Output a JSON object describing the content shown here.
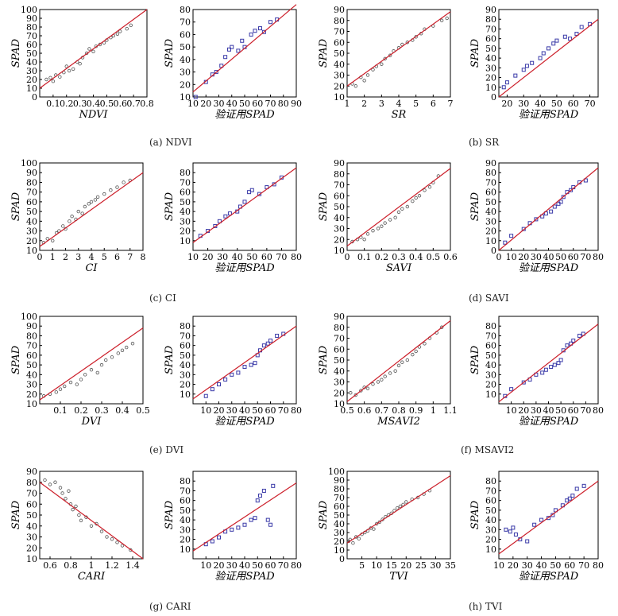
{
  "colors": {
    "fit_line": "#cc1f2a",
    "train_marker": "#555555",
    "validation_marker": "#3a3aa8",
    "axis": "#000000"
  },
  "captions": [
    {
      "id": "a",
      "text": "(a) NDVI"
    },
    {
      "id": "b",
      "text": "(b) SR"
    },
    {
      "id": "c",
      "text": "(c) CI"
    },
    {
      "id": "d",
      "text": "(d) SAVI"
    },
    {
      "id": "e",
      "text": "(e) DVI"
    },
    {
      "id": "f",
      "text": "(f) MSAVI2"
    },
    {
      "id": "g",
      "text": "(g) CARI"
    },
    {
      "id": "h",
      "text": "(h) TVI"
    }
  ],
  "chart_data": [
    {
      "id": "ndvi-model",
      "type": "scatter",
      "marker": "circle",
      "xlabel": "NDVI",
      "ylabel": "SPAD",
      "xlim": [
        0,
        0.8
      ],
      "ylim": [
        0,
        100
      ],
      "xticks": [
        0.1,
        0.2,
        0.3,
        0.4,
        0.5,
        0.6,
        0.7,
        0.8
      ],
      "yticks": [
        0,
        10,
        20,
        30,
        40,
        50,
        60,
        70,
        80,
        90,
        100
      ],
      "fit": [
        [
          0,
          10
        ],
        [
          0.8,
          100
        ]
      ],
      "x": [
        0.05,
        0.08,
        0.1,
        0.12,
        0.15,
        0.18,
        0.2,
        0.22,
        0.25,
        0.28,
        0.3,
        0.32,
        0.35,
        0.37,
        0.4,
        0.42,
        0.45,
        0.48,
        0.5,
        0.53,
        0.55,
        0.58,
        0.6,
        0.65,
        0.68
      ],
      "y": [
        20,
        22,
        18,
        25,
        23,
        28,
        35,
        30,
        32,
        40,
        38,
        45,
        50,
        55,
        52,
        58,
        60,
        62,
        65,
        68,
        70,
        72,
        75,
        78,
        82
      ]
    },
    {
      "id": "ndvi-validation",
      "type": "scatter",
      "marker": "square",
      "xlabel": "验证用SPAD",
      "ylabel": "SPAD",
      "xlim": [
        10,
        90
      ],
      "ylim": [
        10,
        80
      ],
      "xticks": [
        10,
        20,
        30,
        40,
        50,
        60,
        70,
        80,
        90
      ],
      "yticks": [
        10,
        20,
        30,
        40,
        50,
        60,
        70,
        80
      ],
      "fit": [
        [
          10,
          14
        ],
        [
          90,
          84
        ]
      ],
      "x": [
        12,
        20,
        25,
        28,
        32,
        35,
        38,
        40,
        45,
        48,
        50,
        55,
        58,
        62,
        65,
        70,
        75
      ],
      "y": [
        10,
        22,
        28,
        30,
        35,
        42,
        48,
        50,
        47,
        55,
        50,
        60,
        63,
        65,
        62,
        70,
        72
      ]
    },
    {
      "id": "sr-model",
      "type": "scatter",
      "marker": "circle",
      "xlabel": "SR",
      "ylabel": "SPAD",
      "xlim": [
        1,
        7
      ],
      "ylim": [
        10,
        90
      ],
      "xticks": [
        1,
        2,
        3,
        4,
        5,
        6,
        7
      ],
      "yticks": [
        10,
        20,
        30,
        40,
        50,
        60,
        70,
        80,
        90
      ],
      "fit": [
        [
          1,
          20
        ],
        [
          7,
          88
        ]
      ],
      "x": [
        1.3,
        1.5,
        1.8,
        2,
        2.2,
        2.5,
        2.7,
        3,
        3.2,
        3.5,
        3.7,
        4,
        4.2,
        4.5,
        4.8,
        5,
        5.3,
        5.5,
        6,
        6.5,
        6.8
      ],
      "y": [
        22,
        20,
        28,
        25,
        30,
        35,
        38,
        40,
        45,
        48,
        52,
        55,
        58,
        60,
        62,
        65,
        68,
        72,
        75,
        80,
        82
      ]
    },
    {
      "id": "sr-validation",
      "type": "scatter",
      "marker": "square",
      "xlabel": "验证用SPAD",
      "ylabel": "SPAD",
      "xlim": [
        15,
        75
      ],
      "ylim": [
        0,
        90
      ],
      "xticks": [
        20,
        30,
        40,
        50,
        60,
        70
      ],
      "yticks": [
        0,
        10,
        20,
        30,
        40,
        50,
        60,
        70,
        80,
        90
      ],
      "fit": [
        [
          15,
          0
        ],
        [
          75,
          80
        ]
      ],
      "x": [
        18,
        20,
        25,
        30,
        32,
        35,
        40,
        42,
        45,
        48,
        50,
        55,
        58,
        62,
        65,
        70
      ],
      "y": [
        10,
        15,
        22,
        28,
        32,
        35,
        40,
        45,
        50,
        55,
        58,
        62,
        60,
        65,
        72,
        75
      ]
    },
    {
      "id": "ci-model",
      "type": "scatter",
      "marker": "circle",
      "xlabel": "CI",
      "ylabel": "SPAD",
      "xlim": [
        0,
        8
      ],
      "ylim": [
        10,
        100
      ],
      "xticks": [
        0,
        1,
        2,
        3,
        4,
        5,
        6,
        7,
        8
      ],
      "yticks": [
        10,
        20,
        30,
        40,
        50,
        60,
        70,
        80,
        90,
        100
      ],
      "fit": [
        [
          0,
          14
        ],
        [
          8,
          90
        ]
      ],
      "x": [
        0.3,
        0.6,
        1,
        1.3,
        1.5,
        1.8,
        2,
        2.3,
        2.5,
        2.8,
        3,
        3.3,
        3.5,
        3.8,
        4,
        4.3,
        4.5,
        5,
        5.5,
        6,
        6.5,
        7
      ],
      "y": [
        18,
        22,
        20,
        28,
        30,
        35,
        32,
        40,
        45,
        42,
        50,
        48,
        55,
        58,
        60,
        62,
        65,
        68,
        72,
        75,
        80,
        82
      ]
    },
    {
      "id": "ci-validation",
      "type": "scatter",
      "marker": "square",
      "xlabel": "验证用SPAD",
      "ylabel": "SPAD",
      "xlim": [
        10,
        80
      ],
      "ylim": [
        0,
        90
      ],
      "xticks": [
        10,
        20,
        30,
        40,
        50,
        60,
        70,
        80
      ],
      "yticks": [
        10,
        20,
        30,
        40,
        50,
        60,
        70,
        80
      ],
      "fit": [
        [
          10,
          8
        ],
        [
          80,
          85
        ]
      ],
      "x": [
        15,
        20,
        25,
        28,
        32,
        35,
        40,
        42,
        45,
        48,
        50,
        55,
        60,
        65,
        70
      ],
      "y": [
        15,
        20,
        25,
        30,
        35,
        38,
        40,
        45,
        50,
        60,
        62,
        58,
        65,
        68,
        75
      ]
    },
    {
      "id": "savi-model",
      "type": "scatter",
      "marker": "circle",
      "xlabel": "SAVI",
      "ylabel": "SPAD",
      "xlim": [
        0,
        0.6
      ],
      "ylim": [
        10,
        90
      ],
      "xticks": [
        0,
        0.1,
        0.2,
        0.3,
        0.4,
        0.5,
        0.6
      ],
      "yticks": [
        10,
        20,
        30,
        40,
        50,
        60,
        70,
        80,
        90
      ],
      "fit": [
        [
          0,
          14
        ],
        [
          0.6,
          85
        ]
      ],
      "x": [
        0.03,
        0.06,
        0.08,
        0.1,
        0.12,
        0.15,
        0.18,
        0.2,
        0.22,
        0.25,
        0.28,
        0.3,
        0.32,
        0.35,
        0.38,
        0.4,
        0.42,
        0.45,
        0.48,
        0.5,
        0.53
      ],
      "y": [
        18,
        20,
        22,
        20,
        25,
        28,
        30,
        32,
        35,
        38,
        40,
        45,
        48,
        50,
        55,
        58,
        60,
        65,
        68,
        72,
        78
      ]
    },
    {
      "id": "savi-validation",
      "type": "scatter",
      "marker": "square",
      "xlabel": "验证用SPAD",
      "ylabel": "SPAD",
      "xlim": [
        0,
        80
      ],
      "ylim": [
        0,
        90
      ],
      "xticks": [
        0,
        10,
        20,
        30,
        40,
        50,
        60,
        70,
        80
      ],
      "yticks": [
        0,
        10,
        20,
        30,
        40,
        50,
        60,
        70,
        80,
        90
      ],
      "fit": [
        [
          0,
          0
        ],
        [
          80,
          85
        ]
      ],
      "x": [
        5,
        10,
        20,
        25,
        30,
        35,
        38,
        42,
        45,
        48,
        50,
        52,
        55,
        58,
        60,
        65,
        70
      ],
      "y": [
        8,
        15,
        22,
        28,
        32,
        35,
        38,
        40,
        45,
        48,
        50,
        55,
        60,
        62,
        65,
        70,
        72
      ]
    },
    {
      "id": "dvi-model",
      "type": "scatter",
      "marker": "circle",
      "xlabel": "DVI",
      "ylabel": "SPAD",
      "xlim": [
        0,
        0.5
      ],
      "ylim": [
        10,
        100
      ],
      "xticks": [
        0.1,
        0.2,
        0.3,
        0.4,
        0.5
      ],
      "yticks": [
        10,
        20,
        30,
        40,
        50,
        60,
        70,
        80,
        90,
        100
      ],
      "fit": [
        [
          0,
          14
        ],
        [
          0.5,
          88
        ]
      ],
      "x": [
        0.02,
        0.05,
        0.08,
        0.1,
        0.12,
        0.15,
        0.18,
        0.2,
        0.22,
        0.25,
        0.28,
        0.3,
        0.32,
        0.35,
        0.38,
        0.4,
        0.42,
        0.45
      ],
      "y": [
        18,
        20,
        22,
        25,
        28,
        32,
        30,
        35,
        40,
        45,
        42,
        50,
        55,
        58,
        62,
        65,
        68,
        72
      ]
    },
    {
      "id": "dvi-validation",
      "type": "scatter",
      "marker": "square",
      "xlabel": "验证用SPAD",
      "ylabel": "SPAD",
      "xlim": [
        0,
        80
      ],
      "ylim": [
        0,
        90
      ],
      "xticks": [
        10,
        20,
        30,
        40,
        50,
        60,
        70,
        80
      ],
      "yticks": [
        10,
        20,
        30,
        40,
        50,
        60,
        70,
        80
      ],
      "fit": [
        [
          0,
          5
        ],
        [
          80,
          80
        ]
      ],
      "x": [
        10,
        15,
        20,
        25,
        30,
        35,
        40,
        45,
        48,
        50,
        52,
        55,
        58,
        60,
        65,
        70
      ],
      "y": [
        8,
        15,
        20,
        25,
        30,
        32,
        38,
        40,
        42,
        50,
        55,
        60,
        62,
        65,
        70,
        72
      ]
    },
    {
      "id": "msavi2-model",
      "type": "scatter",
      "marker": "circle",
      "xlabel": "MSAVI2",
      "ylabel": "SPAD",
      "xlim": [
        0.5,
        1.1
      ],
      "ylim": [
        10,
        90
      ],
      "xticks": [
        0.5,
        0.6,
        0.7,
        0.8,
        0.9,
        1,
        1.1
      ],
      "yticks": [
        10,
        20,
        30,
        40,
        50,
        60,
        70,
        80,
        90
      ],
      "fit": [
        [
          0.5,
          12
        ],
        [
          1.1,
          86
        ]
      ],
      "x": [
        0.52,
        0.55,
        0.58,
        0.6,
        0.62,
        0.65,
        0.68,
        0.7,
        0.72,
        0.75,
        0.78,
        0.8,
        0.82,
        0.85,
        0.88,
        0.9,
        0.92,
        0.95,
        0.98,
        1.02,
        1.05
      ],
      "y": [
        20,
        18,
        22,
        25,
        24,
        28,
        30,
        32,
        35,
        38,
        40,
        45,
        48,
        50,
        55,
        58,
        62,
        65,
        70,
        75,
        80
      ]
    },
    {
      "id": "msavi2-validation",
      "type": "scatter",
      "marker": "square",
      "xlabel": "验证用SPAD",
      "ylabel": "SPAD",
      "xlim": [
        0,
        80
      ],
      "ylim": [
        0,
        90
      ],
      "xticks": [
        10,
        20,
        30,
        40,
        50,
        60,
        70,
        80
      ],
      "yticks": [
        10,
        20,
        30,
        40,
        50,
        60,
        70,
        80
      ],
      "fit": [
        [
          0,
          2
        ],
        [
          80,
          82
        ]
      ],
      "x": [
        5,
        10,
        20,
        25,
        30,
        35,
        38,
        42,
        45,
        48,
        50,
        52,
        55,
        58,
        60,
        65,
        68
      ],
      "y": [
        8,
        15,
        22,
        25,
        30,
        32,
        35,
        38,
        40,
        42,
        45,
        55,
        60,
        62,
        65,
        70,
        72
      ]
    },
    {
      "id": "cari-model",
      "type": "scatter",
      "marker": "circle",
      "xlabel": "CARI",
      "ylabel": "SPAD",
      "xlim": [
        0.5,
        1.5
      ],
      "ylim": [
        10,
        90
      ],
      "xticks": [
        0.6,
        0.8,
        1,
        1.2,
        1.4
      ],
      "yticks": [
        10,
        20,
        30,
        40,
        50,
        60,
        70,
        80,
        90
      ],
      "fit": [
        [
          0.5,
          80
        ],
        [
          1.5,
          10
        ]
      ],
      "x": [
        0.55,
        0.6,
        0.65,
        0.7,
        0.72,
        0.75,
        0.78,
        0.8,
        0.82,
        0.85,
        0.88,
        0.9,
        0.95,
        1,
        1.05,
        1.1,
        1.15,
        1.2,
        1.25,
        1.3,
        1.38
      ],
      "y": [
        82,
        78,
        80,
        75,
        70,
        65,
        72,
        60,
        55,
        58,
        50,
        45,
        48,
        40,
        42,
        35,
        30,
        28,
        25,
        22,
        18
      ]
    },
    {
      "id": "cari-validation",
      "type": "scatter",
      "marker": "square",
      "xlabel": "验证用SPAD",
      "ylabel": "SPAD",
      "xlim": [
        0,
        80
      ],
      "ylim": [
        0,
        90
      ],
      "xticks": [
        10,
        20,
        30,
        40,
        50,
        60,
        70,
        80
      ],
      "yticks": [
        10,
        20,
        30,
        40,
        50,
        60,
        70,
        80
      ],
      "fit": [
        [
          0,
          8
        ],
        [
          80,
          78
        ]
      ],
      "x": [
        10,
        15,
        20,
        25,
        30,
        35,
        40,
        45,
        48,
        50,
        52,
        55,
        58,
        60,
        62
      ],
      "y": [
        15,
        18,
        22,
        28,
        30,
        32,
        35,
        40,
        42,
        60,
        65,
        70,
        40,
        35,
        75
      ]
    },
    {
      "id": "tvi-model",
      "type": "scatter",
      "marker": "circle",
      "xlabel": "TVI",
      "ylabel": "SPAD",
      "xlim": [
        0,
        35
      ],
      "ylim": [
        0,
        100
      ],
      "xticks": [
        5,
        10,
        15,
        20,
        25,
        30,
        35
      ],
      "yticks": [
        0,
        10,
        20,
        30,
        40,
        50,
        60,
        70,
        80,
        90,
        100
      ],
      "fit": [
        [
          0,
          18
        ],
        [
          35,
          95
        ]
      ],
      "x": [
        0.5,
        1,
        2,
        3,
        4,
        5,
        6,
        7,
        8,
        9,
        10,
        11,
        12,
        13,
        14,
        15,
        16,
        17,
        18,
        19,
        20,
        22,
        24,
        26,
        28
      ],
      "y": [
        20,
        22,
        18,
        25,
        23,
        28,
        30,
        32,
        35,
        34,
        40,
        42,
        45,
        48,
        50,
        52,
        55,
        58,
        60,
        62,
        65,
        68,
        70,
        74,
        78
      ]
    },
    {
      "id": "tvi-validation",
      "type": "scatter",
      "marker": "square",
      "xlabel": "验证用SPAD",
      "ylabel": "SPAD",
      "xlim": [
        10,
        80
      ],
      "ylim": [
        0,
        90
      ],
      "xticks": [
        10,
        20,
        30,
        40,
        50,
        60,
        70,
        80
      ],
      "yticks": [
        10,
        20,
        30,
        40,
        50,
        60,
        70,
        80
      ],
      "fit": [
        [
          10,
          5
        ],
        [
          80,
          80
        ]
      ],
      "x": [
        15,
        18,
        20,
        22,
        25,
        30,
        35,
        40,
        45,
        48,
        50,
        55,
        58,
        60,
        62,
        65,
        70
      ],
      "y": [
        30,
        28,
        32,
        25,
        20,
        18,
        35,
        40,
        42,
        45,
        50,
        55,
        60,
        62,
        65,
        72,
        75
      ]
    }
  ]
}
